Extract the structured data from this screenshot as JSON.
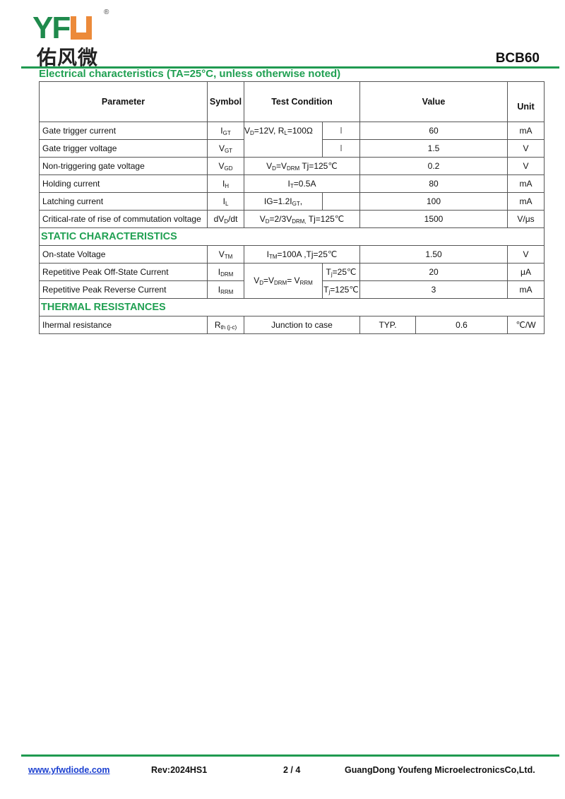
{
  "logo": {
    "latin": "YFU",
    "chinese": "佑风微",
    "registered": "®"
  },
  "part_number": "BCB60",
  "section_title": "Electrical characteristics (TA=25°C, unless otherwise noted)",
  "table": {
    "headers": {
      "parameter": "Parameter",
      "symbol": "Symbol",
      "test_condition": "Test Condition",
      "value": "Value",
      "unit": "Unit"
    },
    "rows": [
      {
        "parameter": "Gate trigger current",
        "symbol": "I",
        "symbol_sub": "GT",
        "condition": "V",
        "condition_rest": "=12V, R",
        "condition_tail": "=100Ω",
        "quadrant": "Ⅰ",
        "value": "60",
        "unit": "mA"
      },
      {
        "parameter": "Gate trigger voltage",
        "symbol": "V",
        "symbol_sub": "GT",
        "quadrant": "Ⅰ",
        "value": "1.5",
        "unit": "V"
      },
      {
        "parameter": "Non-triggering gate voltage",
        "symbol": "V",
        "symbol_sub": "GD",
        "condition": "Tj=125℃",
        "value": "0.2",
        "unit": "V"
      },
      {
        "parameter": "Holding current",
        "symbol": "I",
        "symbol_sub": "H",
        "condition": "=0.5A",
        "value": "80",
        "unit": "mA"
      },
      {
        "parameter": "Latching current",
        "symbol": "I",
        "symbol_sub": "L",
        "condition": "IG=1.2I",
        "value": "100",
        "unit": "mA"
      },
      {
        "parameter": "Critical-rate of rise of commutation voltage",
        "symbol": "dV",
        "symbol_sub": "D",
        "symbol_tail": "/dt",
        "condition": "=2/3V",
        "condition_tail": "Tj=125℃",
        "value": "1500",
        "unit": "V/μs"
      }
    ],
    "static_title": "STATIC CHARACTERISTICS",
    "static_rows": [
      {
        "parameter": "On-state Voltage",
        "symbol": "V",
        "symbol_sub": "TM",
        "condition": "=100A ,Tj=25℃",
        "value": "1.50",
        "unit": "V"
      },
      {
        "parameter": "Repetitive Peak Off-State Current",
        "symbol": "I",
        "symbol_sub": "DRM",
        "condition": "T",
        "temp": "=25℃",
        "value": "20",
        "unit": "μA"
      },
      {
        "parameter": "Repetitive Peak Reverse Current",
        "symbol": "I",
        "symbol_sub": "RRM",
        "temp": "=125℃",
        "value": "3",
        "unit": "mA"
      }
    ],
    "thermal_title": "THERMAL RESISTANCES",
    "thermal_row": {
      "parameter": "Ihermal resistance",
      "symbol": "R",
      "symbol_sub": "th (j-c)",
      "condition": "Junction to case",
      "typ": "TYP.",
      "value": "0.6",
      "unit": "℃/W"
    }
  },
  "footer": {
    "website": "www.yfwdiode.com",
    "rev": "Rev:2024HS1",
    "page": "2 / 4",
    "company": "GuangDong Youfeng MicroelectronicsCo,Ltd."
  },
  "colors": {
    "brand_green": "#1f9a50",
    "brand_orange": "#ec8a3a"
  }
}
